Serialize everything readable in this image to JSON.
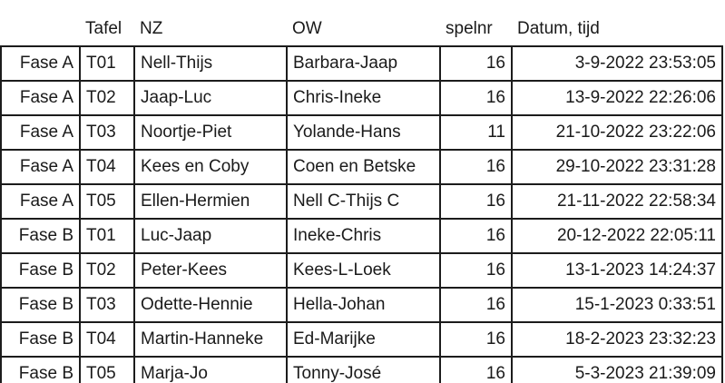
{
  "colors": {
    "background": "#ffffff",
    "text": "#1a1a1a",
    "border": "#1c1c1c"
  },
  "table": {
    "columns": {
      "fase": "",
      "tafel": "Tafel",
      "nz": "NZ",
      "ow": "OW",
      "spelnr": "spelnr",
      "datum": "Datum, tijd"
    },
    "rows": [
      {
        "fase": "Fase A",
        "tafel": "T01",
        "nz": "Nell-Thijs",
        "ow": "Barbara-Jaap",
        "spelnr": "16",
        "datum": "3-9-2022 23:53:05"
      },
      {
        "fase": "Fase A",
        "tafel": "T02",
        "nz": "Jaap-Luc",
        "ow": "Chris-Ineke",
        "spelnr": "16",
        "datum": "13-9-2022 22:26:06"
      },
      {
        "fase": "Fase A",
        "tafel": "T03",
        "nz": "Noortje-Piet",
        "ow": "Yolande-Hans",
        "spelnr": "11",
        "datum": "21-10-2022 23:22:06"
      },
      {
        "fase": "Fase A",
        "tafel": "T04",
        "nz": "Kees en Coby",
        "ow": "Coen en Betske",
        "spelnr": "16",
        "datum": "29-10-2022 23:31:28"
      },
      {
        "fase": "Fase A",
        "tafel": "T05",
        "nz": "Ellen-Hermien",
        "ow": "Nell C-Thijs C",
        "spelnr": "16",
        "datum": "21-11-2022 22:58:34"
      },
      {
        "fase": "Fase B",
        "tafel": "T01",
        "nz": "Luc-Jaap",
        "ow": "Ineke-Chris",
        "spelnr": "16",
        "datum": "20-12-2022 22:05:11"
      },
      {
        "fase": "Fase B",
        "tafel": "T02",
        "nz": "Peter-Kees",
        "ow": "Kees-L-Loek",
        "spelnr": "16",
        "datum": "13-1-2023 14:24:37"
      },
      {
        "fase": "Fase B",
        "tafel": "T03",
        "nz": "Odette-Hennie",
        "ow": "Hella-Johan",
        "spelnr": "16",
        "datum": "15-1-2023 0:33:51"
      },
      {
        "fase": "Fase B",
        "tafel": "T04",
        "nz": "Martin-Hanneke",
        "ow": "Ed-Marijke",
        "spelnr": "16",
        "datum": "18-2-2023 23:32:23"
      },
      {
        "fase": "Fase B",
        "tafel": "T05",
        "nz": "Marja-Jo",
        "ow": "Tonny-José",
        "spelnr": "16",
        "datum": "5-3-2023 21:39:09"
      }
    ]
  }
}
